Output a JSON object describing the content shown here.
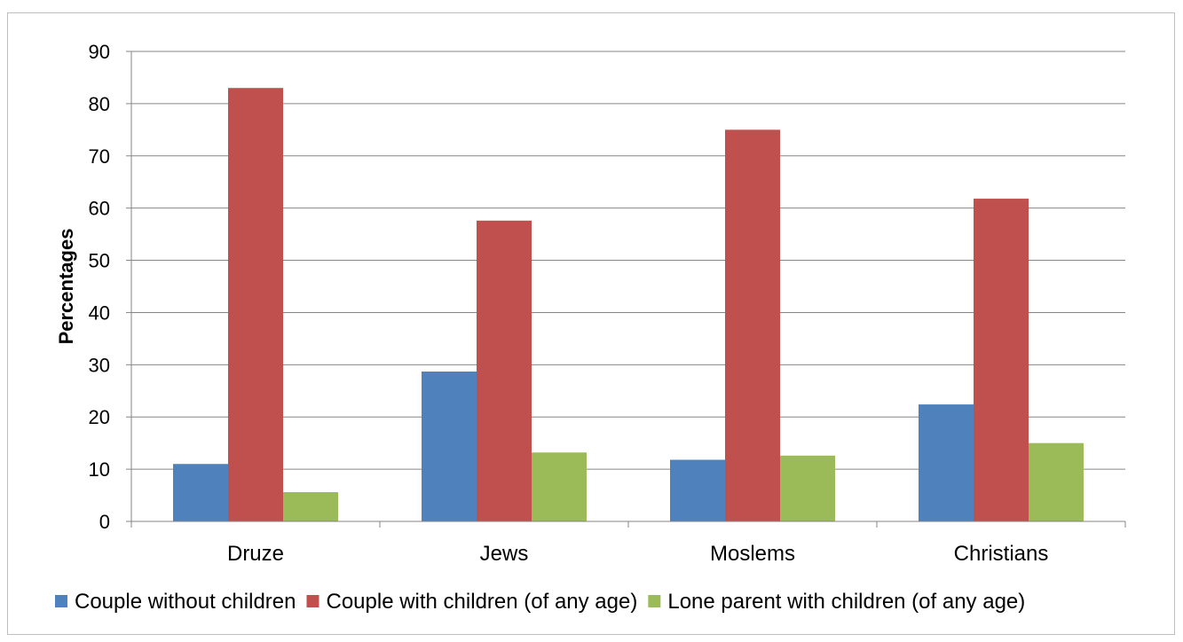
{
  "chart_data": {
    "type": "bar",
    "title": "",
    "xlabel": "",
    "ylabel": "Percentages",
    "ylim": [
      0,
      90
    ],
    "yticks": [
      0,
      10,
      20,
      30,
      40,
      50,
      60,
      70,
      80,
      90
    ],
    "categories": [
      "Druze",
      "Jews",
      "Moslems",
      "Christians"
    ],
    "series": [
      {
        "name": "Couple without children",
        "color": "#4f81bd",
        "values": [
          11,
          28.7,
          11.8,
          22.4
        ]
      },
      {
        "name": "Couple with children (of any age)",
        "color": "#c0504d",
        "values": [
          83,
          57.6,
          75,
          61.8
        ]
      },
      {
        "name": "Lone parent with children (of any age)",
        "color": "#9bbb59",
        "values": [
          5.6,
          13.2,
          12.6,
          15
        ]
      }
    ],
    "grid": true,
    "legend_position": "bottom"
  }
}
